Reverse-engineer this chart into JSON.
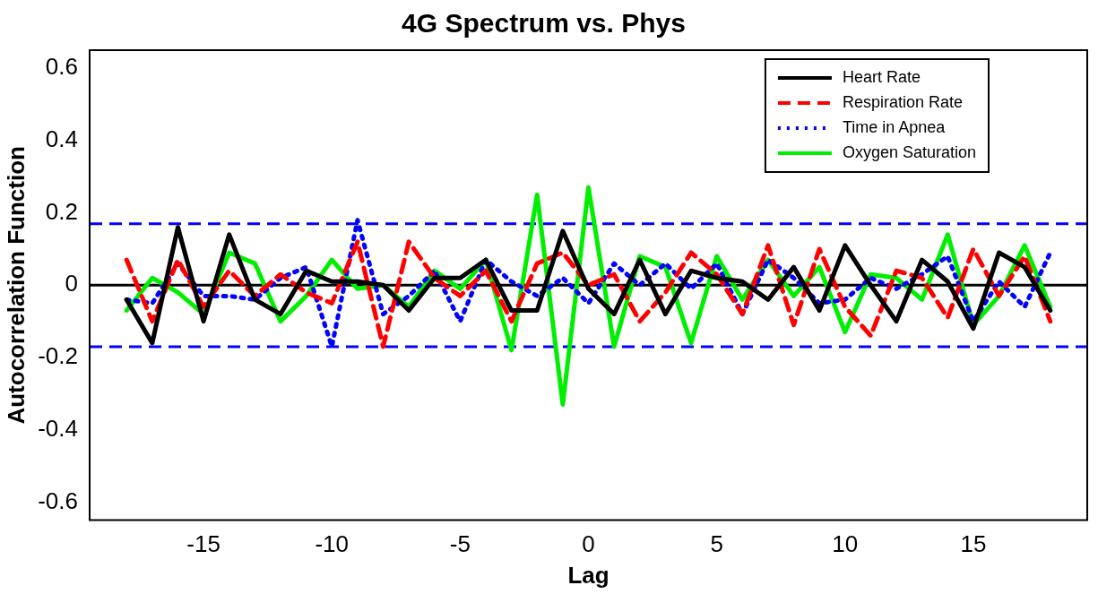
{
  "chart_data": {
    "type": "line",
    "title": "4G Spectrum vs. Phys",
    "xlabel": "Lag",
    "ylabel": "Autocorrelation Function",
    "x": [
      -18,
      -17,
      -16,
      -15,
      -14,
      -13,
      -12,
      -11,
      -10,
      -9,
      -8,
      -7,
      -6,
      -5,
      -4,
      -3,
      -2,
      -1,
      0,
      1,
      2,
      3,
      4,
      5,
      6,
      7,
      8,
      9,
      10,
      11,
      12,
      13,
      14,
      15,
      16,
      17,
      18
    ],
    "series": [
      {
        "name": "Heart Rate",
        "color": "#000000",
        "line_style": "solid",
        "values": [
          -0.04,
          -0.16,
          0.16,
          -0.1,
          0.14,
          -0.04,
          -0.08,
          0.04,
          0.01,
          0.01,
          0,
          -0.07,
          0.02,
          0.02,
          0.07,
          -0.07,
          -0.07,
          0.15,
          -0.01,
          -0.08,
          0.07,
          -0.08,
          0.04,
          0.02,
          0.01,
          -0.04,
          0.05,
          -0.07,
          0.11,
          0,
          -0.1,
          0.07,
          0.01,
          -0.12,
          0.09,
          0.05,
          -0.07
        ]
      },
      {
        "name": "Respiration Rate",
        "color": "#ff0000",
        "line_style": "dashed",
        "values": [
          0.07,
          -0.1,
          0.07,
          -0.06,
          0.04,
          -0.03,
          0.03,
          -0.02,
          -0.05,
          0.12,
          -0.17,
          0.12,
          0.02,
          -0.03,
          0.04,
          -0.1,
          0.06,
          0.09,
          0,
          0.03,
          -0.1,
          -0.02,
          0.09,
          0.03,
          -0.08,
          0.11,
          -0.11,
          0.1,
          -0.06,
          -0.14,
          0.04,
          0.02,
          -0.09,
          0.1,
          -0.03,
          0.08,
          -0.1
        ]
      },
      {
        "name": "Time in Apnea",
        "color": "#0000ff",
        "line_style": "dotted",
        "values": [
          -0.04,
          -0.05,
          0.06,
          -0.03,
          -0.03,
          -0.04,
          0.02,
          0.05,
          -0.17,
          0.18,
          -0.08,
          -0.03,
          0.04,
          -0.1,
          0.07,
          0.01,
          -0.03,
          0.02,
          -0.05,
          0.06,
          0,
          0.06,
          -0.01,
          0.06,
          -0.08,
          0.07,
          0.02,
          -0.05,
          -0.04,
          0.02,
          -0.01,
          0.03,
          0.08,
          -0.1,
          0.01,
          -0.06,
          0.09
        ]
      },
      {
        "name": "Oxygen Saturation",
        "color": "#00ee00",
        "line_style": "solid",
        "values": [
          -0.07,
          0.02,
          -0.02,
          -0.08,
          0.09,
          0.06,
          -0.1,
          -0.03,
          0.07,
          -0.01,
          0,
          -0.06,
          0.04,
          -0.01,
          0.07,
          -0.18,
          0.25,
          -0.33,
          0.27,
          -0.17,
          0.08,
          0.05,
          -0.16,
          0.08,
          -0.04,
          0.07,
          -0.03,
          0.05,
          -0.13,
          0.03,
          0.02,
          -0.04,
          0.14,
          -0.11,
          -0.03,
          0.11,
          -0.06
        ]
      }
    ],
    "ref_lines": [
      {
        "axis": "y",
        "value": 0,
        "color": "#000000",
        "line_style": "solid"
      },
      {
        "axis": "y",
        "value": 0.17,
        "color": "#0000ff",
        "line_style": "dashed"
      },
      {
        "axis": "y",
        "value": -0.17,
        "color": "#0000ff",
        "line_style": "dashed"
      }
    ],
    "xlim": [
      -19.44,
      19.44
    ],
    "ylim": [
      -0.65,
      0.65
    ],
    "xticks": [
      -15,
      -10,
      -5,
      0,
      5,
      10,
      15
    ],
    "yticks": [
      -0.6,
      -0.4,
      -0.2,
      0,
      0.2,
      0.4,
      0.6
    ],
    "grid": false,
    "legend": "top right",
    "marker": "none"
  }
}
